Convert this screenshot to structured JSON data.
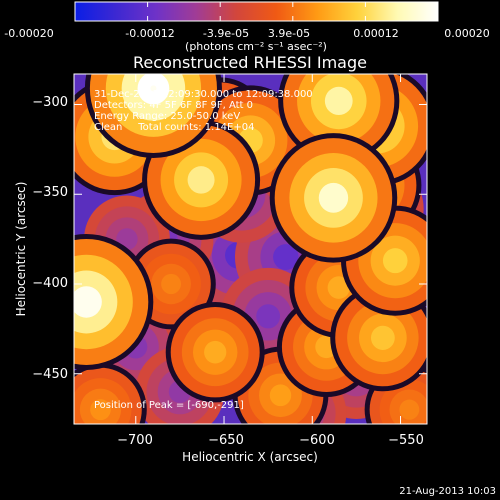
{
  "colorbar": {
    "tick_labels": [
      "-0.00020",
      "-0.00012",
      "-3.9e-05",
      "3.9e-05",
      "0.00012",
      "0.00020"
    ],
    "units_label": "(photons cm⁻² s⁻¹ asec⁻²)",
    "range": [
      -0.0002,
      0.0002
    ],
    "colors": [
      "#0a1ee6",
      "#3c28d2",
      "#6e32c8",
      "#a03c96",
      "#d2463c",
      "#f05a14",
      "#ff9a14",
      "#ffd23c",
      "#fffab4",
      "#ffffff"
    ]
  },
  "plot": {
    "title": "Reconstructed RHESSI Image",
    "annotation_lines": [
      "31-Dec-2011 12:09:30.000 to 12:09:38.000",
      "Detectors: 4F 5F 6F 8F 9F, Att 0",
      "Energy Range: 25.0-50.0 keV",
      "Clean     Total counts: 1.14E+04"
    ],
    "peak_label": "Position of Peak = [-690,-291]"
  },
  "footer": {
    "timestamp": "21-Aug-2013 10:03"
  },
  "chart_data": {
    "type": "heatmap",
    "title": "Reconstructed RHESSI Image",
    "xlabel": "Heliocentric X (arcsec)",
    "ylabel": "Heliocentric Y (arcsec)",
    "xlim": [
      -735,
      -535
    ],
    "ylim": [
      -478,
      -283
    ],
    "x_ticks": [
      -700,
      -650,
      -600,
      -550
    ],
    "y_ticks": [
      -450,
      -400,
      -350,
      -300
    ],
    "x_tick_labels": [
      "−700",
      "−650",
      "−600",
      "−550"
    ],
    "y_tick_labels": [
      "−450",
      "−400",
      "−350",
      "−300"
    ],
    "color_range": [
      -0.0002,
      0.0002
    ],
    "peak": [
      -690,
      -291
    ],
    "sources": [
      {
        "x": -690,
        "y": -291,
        "value": 0.0002
      },
      {
        "x": -728,
        "y": -410,
        "value": 0.00019
      },
      {
        "x": -712,
        "y": -318,
        "value": 0.00013
      },
      {
        "x": -663,
        "y": -342,
        "value": 0.00014
      },
      {
        "x": -635,
        "y": -320,
        "value": 0.00011
      },
      {
        "x": -585,
        "y": -298,
        "value": 0.00015
      },
      {
        "x": -563,
        "y": -312,
        "value": 0.00014
      },
      {
        "x": -588,
        "y": -352,
        "value": 0.00017
      },
      {
        "x": -568,
        "y": -345,
        "value": 0.0001
      },
      {
        "x": -553,
        "y": -387,
        "value": 0.00011
      },
      {
        "x": -560,
        "y": -430,
        "value": 0.0001
      },
      {
        "x": -592,
        "y": -435,
        "value": 8e-05
      },
      {
        "x": -655,
        "y": -438,
        "value": 8e-05
      },
      {
        "x": -618,
        "y": -462,
        "value": 7e-05
      },
      {
        "x": -585,
        "y": -402,
        "value": 8e-05
      },
      {
        "x": -652,
        "y": -312,
        "value": 7e-05
      },
      {
        "x": -720,
        "y": -470,
        "value": 6e-05
      },
      {
        "x": -680,
        "y": -400,
        "value": 5e-05
      },
      {
        "x": -545,
        "y": -470,
        "value": 5e-05
      },
      {
        "x": -642,
        "y": -384,
        "value": -0.00013
      },
      {
        "x": -683,
        "y": -375,
        "value": -0.0001
      },
      {
        "x": -615,
        "y": -385,
        "value": -0.00012
      },
      {
        "x": -563,
        "y": -358,
        "value": -9e-05
      },
      {
        "x": -640,
        "y": -350,
        "value": -0.0001
      },
      {
        "x": -605,
        "y": -335,
        "value": -8e-05
      },
      {
        "x": -625,
        "y": -418,
        "value": -0.0001
      },
      {
        "x": -700,
        "y": -435,
        "value": -9e-05
      },
      {
        "x": -675,
        "y": -460,
        "value": -8e-05
      },
      {
        "x": -575,
        "y": -450,
        "value": -8e-05
      },
      {
        "x": -605,
        "y": -472,
        "value": -7e-05
      },
      {
        "x": -705,
        "y": -375,
        "value": -7e-05
      },
      {
        "x": -600,
        "y": -310,
        "value": -6e-05
      }
    ]
  }
}
